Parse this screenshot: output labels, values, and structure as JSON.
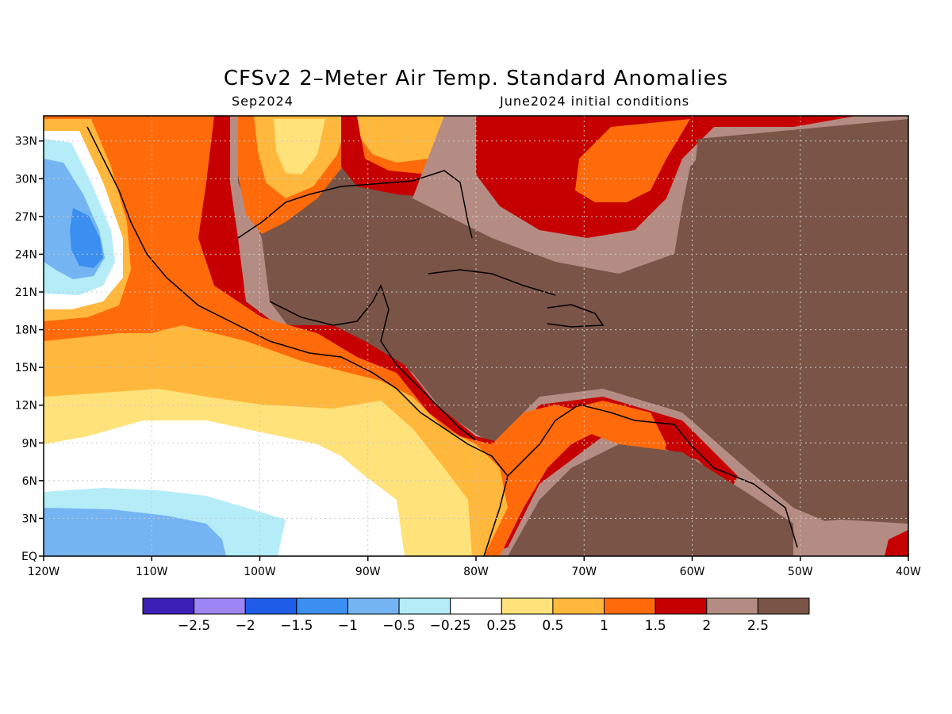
{
  "title": "CFSv2 2–Meter Air Temp. Standard Anomalies",
  "subtitle_left": "Sep2024",
  "subtitle_right": "June2024 initial conditions",
  "map": {
    "lon_range": [
      -120,
      -40
    ],
    "lat_range": [
      0,
      35
    ],
    "lon_ticks": [
      {
        "value": -120,
        "label": "120W"
      },
      {
        "value": -110,
        "label": "110W"
      },
      {
        "value": -100,
        "label": "100W"
      },
      {
        "value": -90,
        "label": "90W"
      },
      {
        "value": -80,
        "label": "80W"
      },
      {
        "value": -70,
        "label": "70W"
      },
      {
        "value": -60,
        "label": "60W"
      },
      {
        "value": -50,
        "label": "50W"
      },
      {
        "value": -40,
        "label": "40W"
      }
    ],
    "lat_ticks": [
      {
        "value": 0,
        "label": "EQ"
      },
      {
        "value": 3,
        "label": "3N"
      },
      {
        "value": 6,
        "label": "6N"
      },
      {
        "value": 9,
        "label": "9N"
      },
      {
        "value": 12,
        "label": "12N"
      },
      {
        "value": 15,
        "label": "15N"
      },
      {
        "value": 18,
        "label": "18N"
      },
      {
        "value": 21,
        "label": "21N"
      },
      {
        "value": 24,
        "label": "24N"
      },
      {
        "value": 27,
        "label": "27N"
      },
      {
        "value": 30,
        "label": "30N"
      },
      {
        "value": 33,
        "label": "33N"
      }
    ],
    "grid": "dotted"
  },
  "legend": {
    "colors": [
      "#3a1fb4",
      "#9e85f5",
      "#1f5ce8",
      "#3a8ff0",
      "#74b4f2",
      "#b4ecf8",
      "#ffffff",
      "#ffe27a",
      "#ffb73c",
      "#ff6a0a",
      "#c60000",
      "#b58c83",
      "#7a5447"
    ],
    "labels": [
      "−2.5",
      "−2",
      "−1.5",
      "−1",
      "−0.5",
      "−0.25",
      "0.25",
      "0.5",
      "1",
      "1.5",
      "2",
      "2.5"
    ]
  }
}
